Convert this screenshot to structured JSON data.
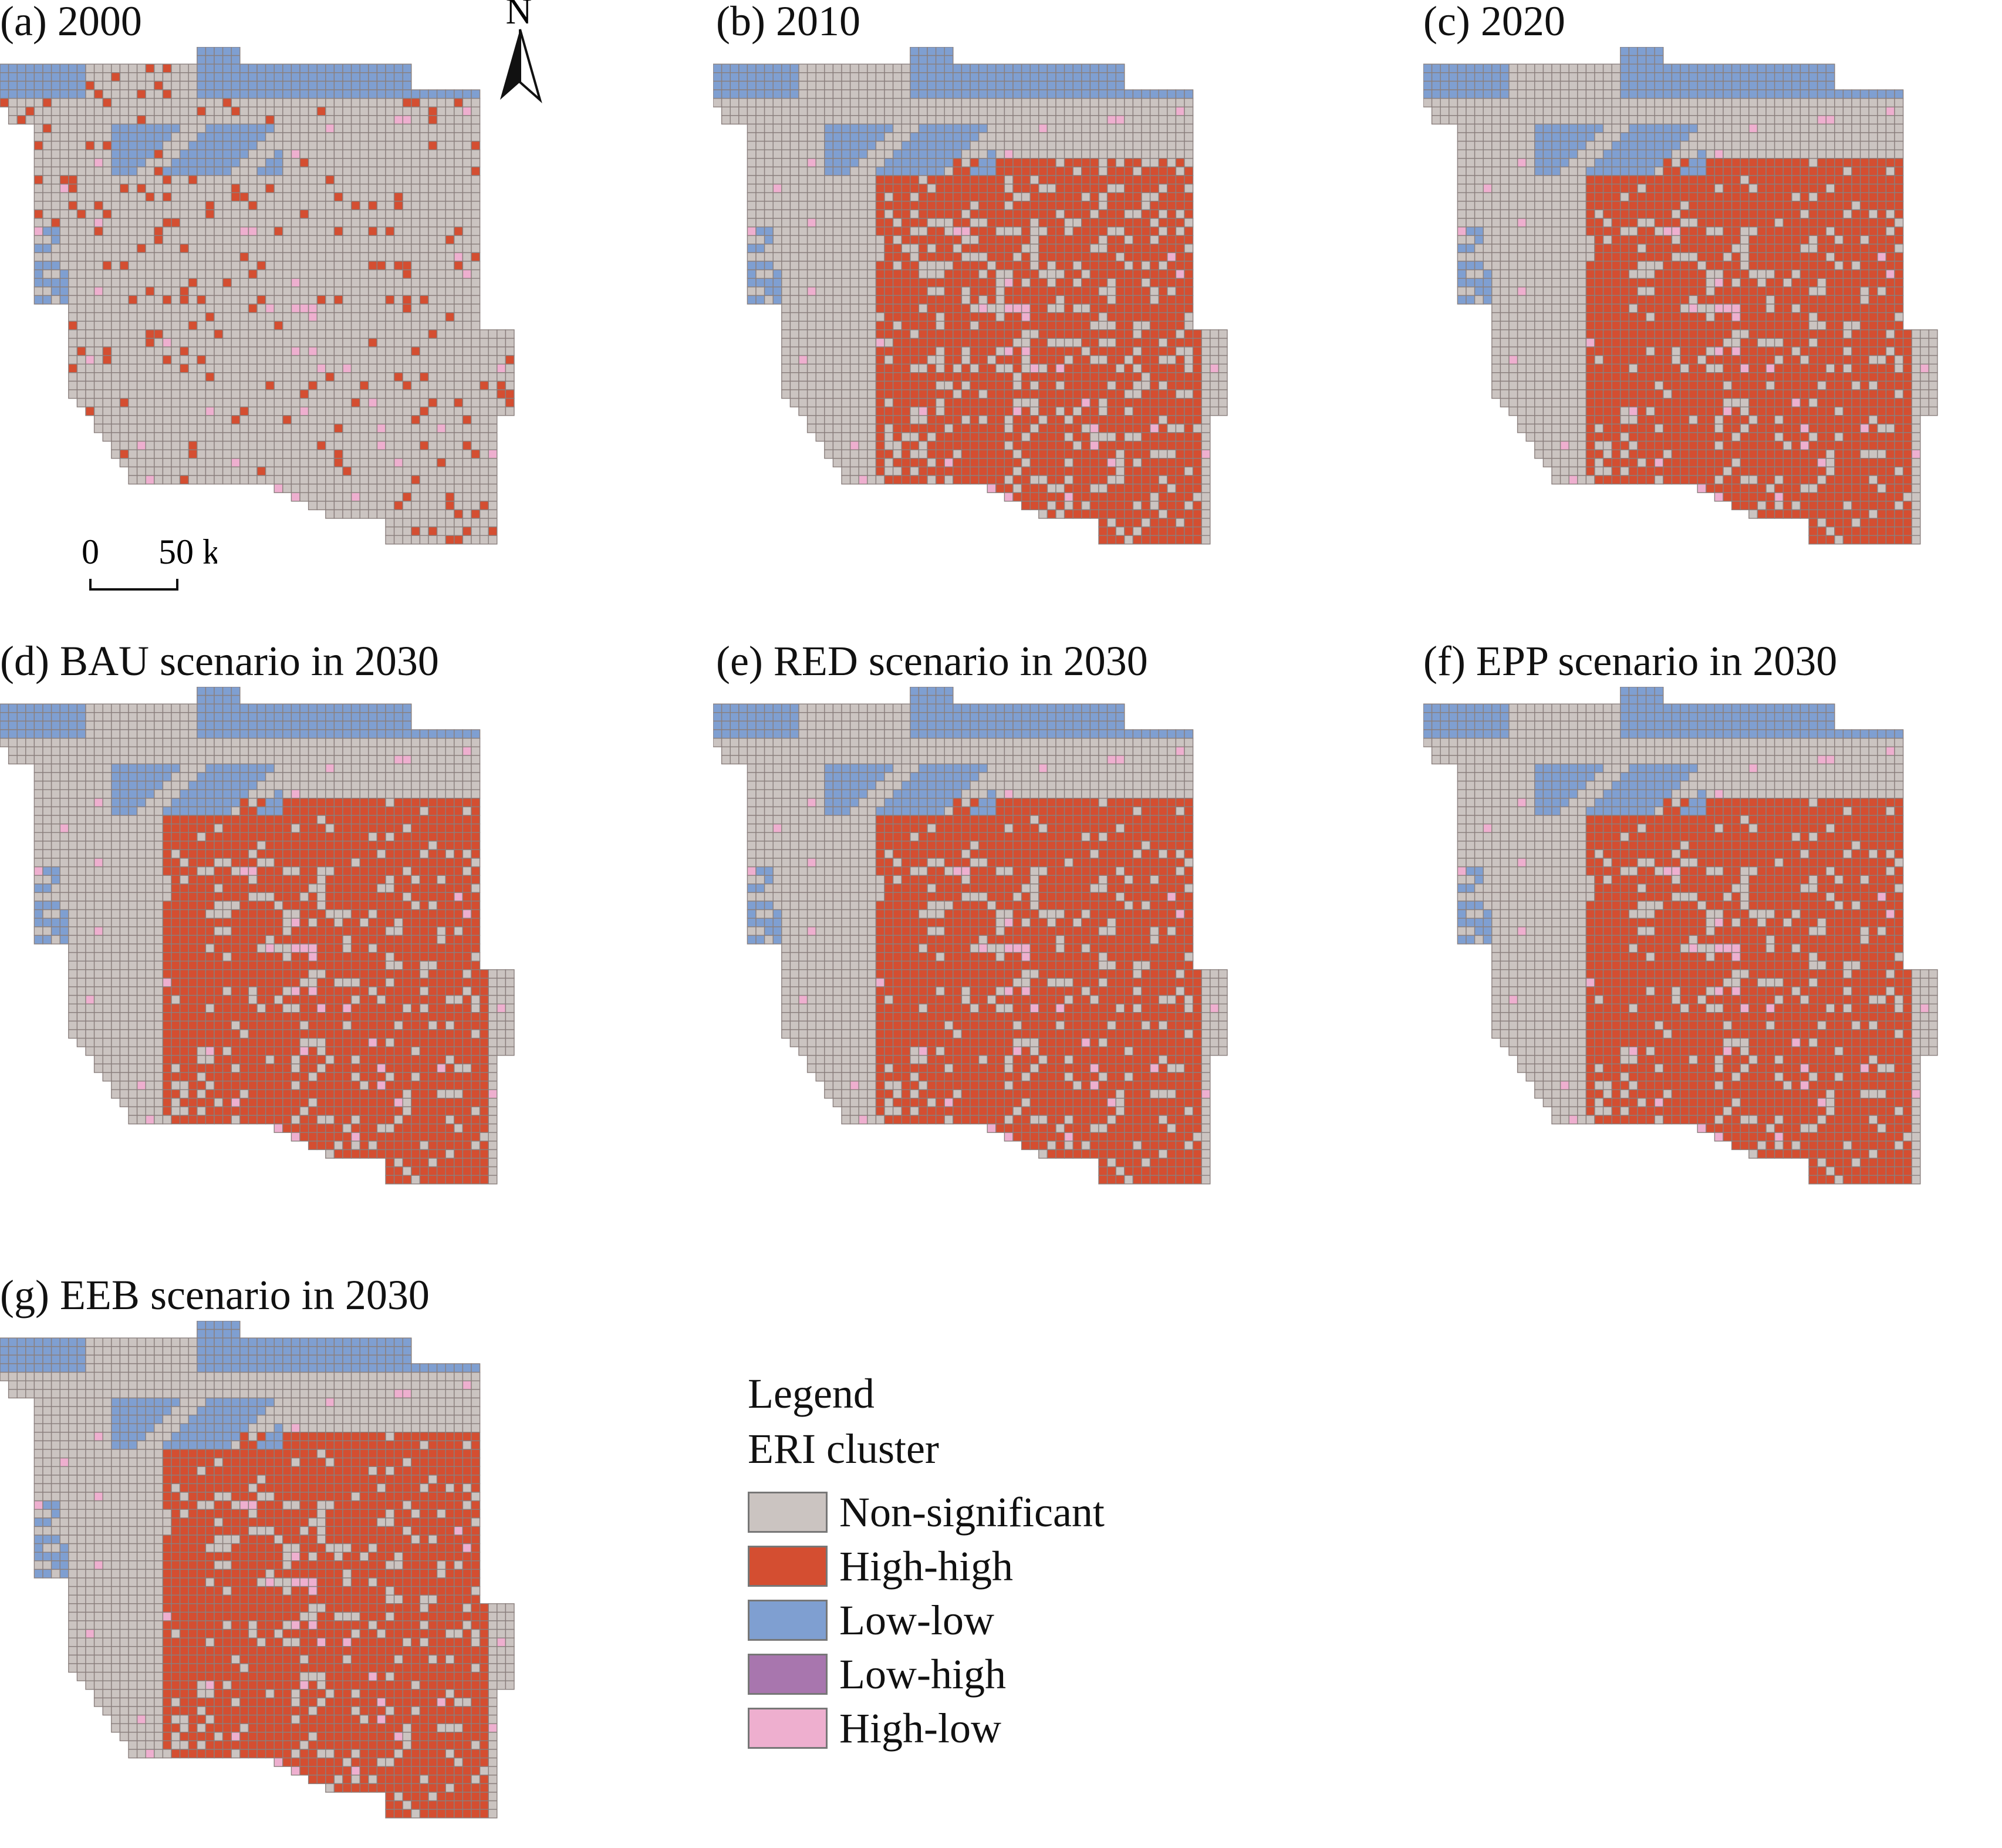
{
  "figure": {
    "panels": [
      {
        "id": "a",
        "title": "(a) 2000",
        "state": "2000"
      },
      {
        "id": "b",
        "title": "(b) 2010",
        "state": "2010"
      },
      {
        "id": "c",
        "title": "(c) 2020",
        "state": "2020"
      },
      {
        "id": "d",
        "title": "(d) BAU scenario in 2030",
        "state": "2030"
      },
      {
        "id": "e",
        "title": "(e) RED scenario in 2030",
        "state": "2030"
      },
      {
        "id": "f",
        "title": "(f) EPP scenario in 2030",
        "state": "2030"
      },
      {
        "id": "g",
        "title": "(g) EEB scenario in 2030",
        "state": "2030"
      }
    ],
    "north_arrow": {
      "label": "N",
      "icon": "north-arrow-icon"
    },
    "scale_bar": {
      "start": "0",
      "end": "50 km"
    },
    "legend": {
      "title": "Legend",
      "subtitle": "ERI cluster",
      "items": [
        {
          "label": "Non-significant",
          "color": "#cbc4c1",
          "icon": "swatch-non-significant"
        },
        {
          "label": "High-high",
          "color": "#d44e31",
          "icon": "swatch-high-high"
        },
        {
          "label": "Low-low",
          "color": "#7f9fd1",
          "icon": "swatch-low-low"
        },
        {
          "label": "Low-high",
          "color": "#a876ae",
          "icon": "swatch-low-high"
        },
        {
          "label": "High-low",
          "color": "#eeafcf",
          "icon": "swatch-high-low"
        }
      ]
    },
    "grid_line_color": "#8a7f7d"
  }
}
